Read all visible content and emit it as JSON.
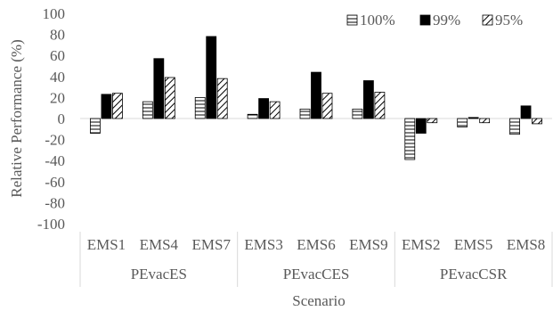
{
  "chart_data": {
    "type": "bar",
    "title": "",
    "xlabel": "Scenario",
    "ylabel": "Relative Performance (%)",
    "ylim": [
      -100,
      100
    ],
    "ytick_step": 20,
    "grid": false,
    "legend_position": "top-right",
    "categories": [
      "EMS1",
      "EMS4",
      "EMS7",
      "EMS3",
      "EMS6",
      "EMS9",
      "EMS2",
      "EMS5",
      "EMS8"
    ],
    "groups": [
      {
        "label": "PEvacES",
        "span": 3
      },
      {
        "label": "PEvacCES",
        "span": 3
      },
      {
        "label": "PEvacCSR",
        "span": 3
      }
    ],
    "series": [
      {
        "name": "100%",
        "pattern": "horizontal-lines",
        "values": [
          -14,
          16,
          20,
          4,
          9,
          9,
          -39,
          -8,
          -15
        ]
      },
      {
        "name": "99%",
        "pattern": "solid",
        "values": [
          23,
          57,
          78,
          19,
          44,
          36,
          -14,
          1,
          12
        ]
      },
      {
        "name": "95%",
        "pattern": "diagonal-lines",
        "values": [
          24,
          39,
          38,
          16,
          24,
          25,
          -4,
          -4,
          -5
        ]
      }
    ]
  },
  "colors": {
    "bar": "#000000",
    "axis": "#d9d9d9",
    "text": "#595959"
  }
}
